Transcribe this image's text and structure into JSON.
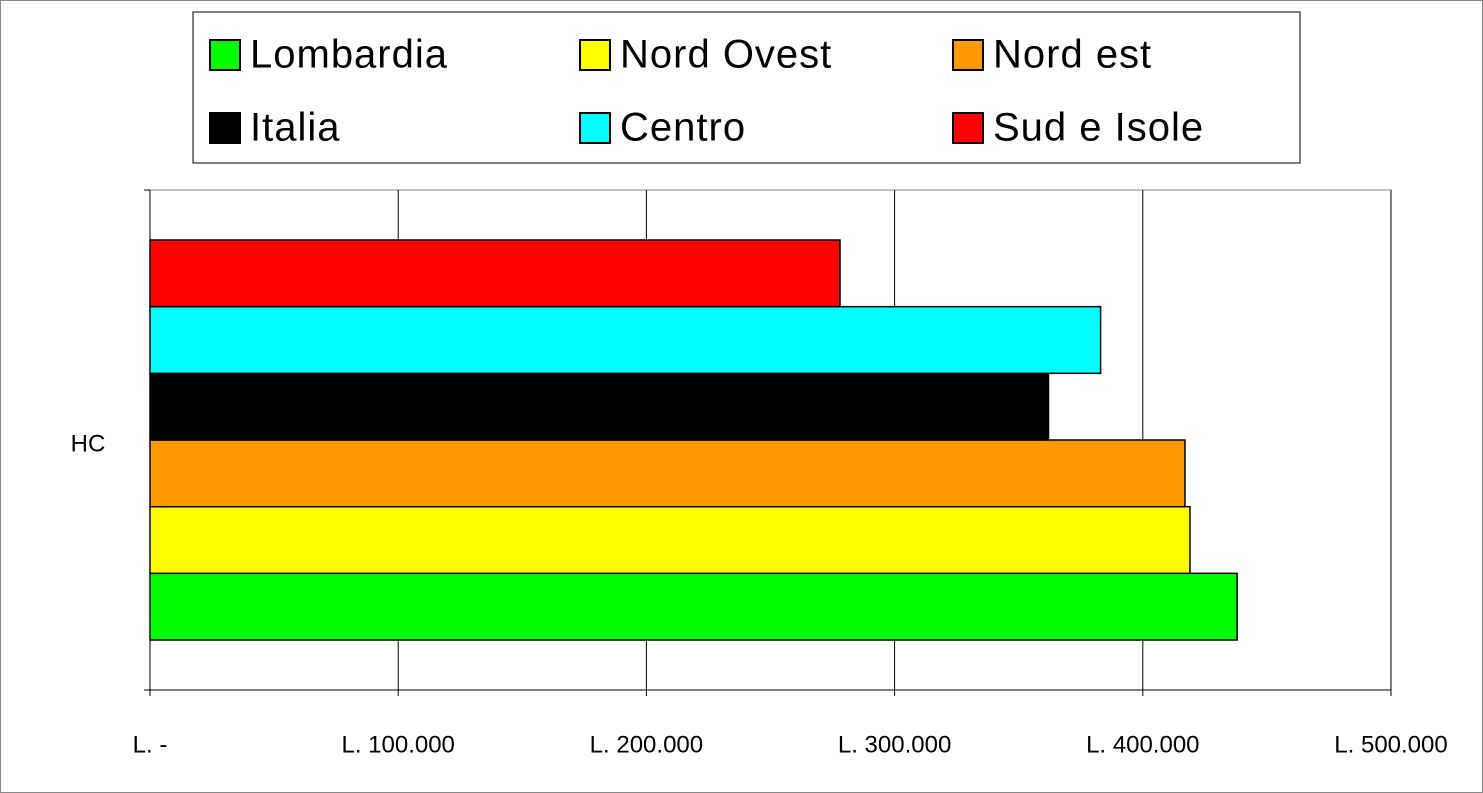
{
  "chart_data": {
    "type": "barh",
    "categories": [
      "HC"
    ],
    "series": [
      {
        "name": "Lombardia",
        "color": "#00ff00",
        "values": [
          438000
        ]
      },
      {
        "name": "Nord Ovest",
        "color": "#ffff00",
        "values": [
          419000
        ]
      },
      {
        "name": "Nord est",
        "color": "#ff9900",
        "values": [
          417000
        ]
      },
      {
        "name": "Italia",
        "color": "#000000",
        "values": [
          362000
        ]
      },
      {
        "name": "Centro",
        "color": "#00ffff",
        "values": [
          383000
        ]
      },
      {
        "name": "Sud e Isole",
        "color": "#ff0000",
        "values": [
          278000
        ]
      }
    ],
    "xlim": [
      0,
      500000
    ],
    "xticks": [
      {
        "value": 0,
        "label": "L. -"
      },
      {
        "value": 100000,
        "label": "L. 100.000"
      },
      {
        "value": 200000,
        "label": "L. 200.000"
      },
      {
        "value": 300000,
        "label": "L. 300.000"
      },
      {
        "value": 400000,
        "label": "L. 400.000"
      },
      {
        "value": 500000,
        "label": "L. 500.000"
      }
    ],
    "grid": true,
    "legend": "top"
  }
}
